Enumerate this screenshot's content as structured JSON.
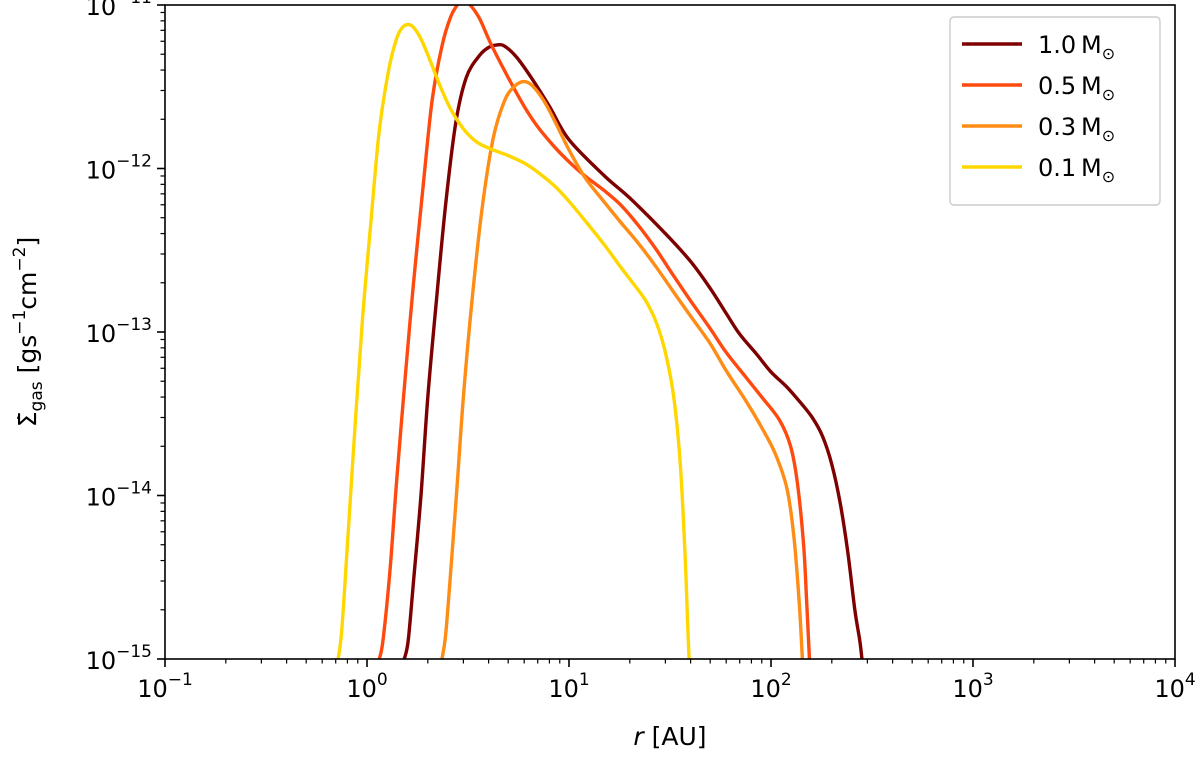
{
  "chart_data": {
    "type": "line",
    "xscale": "log",
    "yscale": "log",
    "xlim": [
      0.1,
      10000
    ],
    "ylim": [
      1e-15,
      1e-11
    ],
    "x_ticks": [
      {
        "value": 0.1,
        "base": "10",
        "exp": "−1"
      },
      {
        "value": 1,
        "base": "10",
        "exp": "0"
      },
      {
        "value": 10,
        "base": "10",
        "exp": "1"
      },
      {
        "value": 100,
        "base": "10",
        "exp": "2"
      },
      {
        "value": 1000,
        "base": "10",
        "exp": "3"
      },
      {
        "value": 10000,
        "base": "10",
        "exp": "4"
      }
    ],
    "y_ticks": [
      {
        "value": 1e-15,
        "base": "10",
        "exp": "−15"
      },
      {
        "value": 1e-14,
        "base": "10",
        "exp": "−14"
      },
      {
        "value": 1e-13,
        "base": "10",
        "exp": "−13"
      },
      {
        "value": 1e-12,
        "base": "10",
        "exp": "−12"
      },
      {
        "value": 1e-11,
        "base": "10",
        "exp": "−11"
      }
    ],
    "xlabel": {
      "var": "r",
      "unit": " [AU]"
    },
    "ylabel": {
      "var": "Σ̇",
      "sub": "gas",
      "unit_open": " [gs",
      "exp1": "−1",
      "unit_mid": "cm",
      "exp2": "−2",
      "unit_close": "]"
    },
    "grid": false,
    "legend_position": "top-right",
    "series": [
      {
        "name": "1.0 M☉",
        "label_value": "1.0",
        "label_unit": "M",
        "color": "#7f0000",
        "points": [
          [
            1.53,
            1e-15
          ],
          [
            1.6,
            1.3e-15
          ],
          [
            1.7,
            3e-15
          ],
          [
            1.85,
            1e-14
          ],
          [
            2.0,
            4e-14
          ],
          [
            2.2,
            1.5e-13
          ],
          [
            2.45,
            6e-13
          ],
          [
            2.75,
            1.9e-12
          ],
          [
            3.1,
            3.6e-12
          ],
          [
            3.6,
            4.9e-12
          ],
          [
            4.0,
            5.5e-12
          ],
          [
            4.4,
            5.7e-12
          ],
          [
            4.8,
            5.6e-12
          ],
          [
            5.5,
            4.8e-12
          ],
          [
            6.5,
            3.6e-12
          ],
          [
            8,
            2.4e-12
          ],
          [
            10,
            1.5e-12
          ],
          [
            15,
            9e-13
          ],
          [
            20,
            6.6e-13
          ],
          [
            30,
            4e-13
          ],
          [
            40,
            2.7e-13
          ],
          [
            50,
            1.85e-13
          ],
          [
            60,
            1.3e-13
          ],
          [
            70,
            9.7e-14
          ],
          [
            85,
            7.3e-14
          ],
          [
            100,
            5.7e-14
          ],
          [
            120,
            4.6e-14
          ],
          [
            140,
            3.7e-14
          ],
          [
            160,
            3e-14
          ],
          [
            180,
            2.3e-14
          ],
          [
            200,
            1.55e-14
          ],
          [
            220,
            9e-15
          ],
          [
            240,
            4.5e-15
          ],
          [
            260,
            2e-15
          ],
          [
            275,
            1.3e-15
          ],
          [
            282,
            1e-15
          ]
        ]
      },
      {
        "name": "0.5 M☉",
        "label_value": "0.5",
        "label_unit": "M",
        "color": "#ff4a0f",
        "points": [
          [
            1.15,
            1e-15
          ],
          [
            1.2,
            1.3e-15
          ],
          [
            1.3,
            3.5e-15
          ],
          [
            1.4,
            1.2e-14
          ],
          [
            1.55,
            5.5e-14
          ],
          [
            1.7,
            2e-13
          ],
          [
            1.9,
            8e-13
          ],
          [
            2.1,
            2.6e-12
          ],
          [
            2.35,
            5.6e-12
          ],
          [
            2.6,
            8.5e-12
          ],
          [
            2.85,
            1.03e-11
          ],
          [
            3.0,
            1.06e-11
          ],
          [
            3.2,
            1.02e-11
          ],
          [
            3.6,
            8.3e-12
          ],
          [
            4.1,
            5.8e-12
          ],
          [
            5,
            3.6e-12
          ],
          [
            6,
            2.4e-12
          ],
          [
            7,
            1.8e-12
          ],
          [
            8.5,
            1.35e-12
          ],
          [
            10,
            1.1e-12
          ],
          [
            12,
            9e-13
          ],
          [
            15,
            7.3e-13
          ],
          [
            18,
            6e-13
          ],
          [
            22,
            4.5e-13
          ],
          [
            27,
            3.2e-13
          ],
          [
            33,
            2.2e-13
          ],
          [
            40,
            1.55e-13
          ],
          [
            50,
            1.05e-13
          ],
          [
            60,
            7.5e-14
          ],
          [
            75,
            5.3e-14
          ],
          [
            90,
            4e-14
          ],
          [
            110,
            2.9e-14
          ],
          [
            125,
            2e-14
          ],
          [
            135,
            1.2e-14
          ],
          [
            145,
            5e-15
          ],
          [
            150,
            2.3e-15
          ],
          [
            155,
            1e-15
          ]
        ]
      },
      {
        "name": "0.3 M☉",
        "label_value": "0.3",
        "label_unit": "M",
        "color": "#ff8c14",
        "points": [
          [
            2.35,
            1e-15
          ],
          [
            2.45,
            1.4e-15
          ],
          [
            2.6,
            3.5e-15
          ],
          [
            2.8,
            1.2e-14
          ],
          [
            3.0,
            4e-14
          ],
          [
            3.3,
            1.5e-13
          ],
          [
            3.7,
            5.5e-13
          ],
          [
            4.2,
            1.5e-12
          ],
          [
            4.8,
            2.6e-12
          ],
          [
            5.4,
            3.2e-12
          ],
          [
            6.0,
            3.4e-12
          ],
          [
            6.6,
            3.2e-12
          ],
          [
            7.5,
            2.6e-12
          ],
          [
            8.5,
            1.95e-12
          ],
          [
            10,
            1.3e-12
          ],
          [
            12,
            8.8e-13
          ],
          [
            15,
            6.2e-13
          ],
          [
            18,
            4.7e-13
          ],
          [
            22,
            3.5e-13
          ],
          [
            27,
            2.5e-13
          ],
          [
            33,
            1.75e-13
          ],
          [
            40,
            1.25e-13
          ],
          [
            50,
            8.5e-14
          ],
          [
            60,
            5.8e-14
          ],
          [
            75,
            3.8e-14
          ],
          [
            90,
            2.6e-14
          ],
          [
            105,
            1.8e-14
          ],
          [
            120,
            1.1e-14
          ],
          [
            130,
            5.5e-15
          ],
          [
            138,
            2.2e-15
          ],
          [
            143,
            1e-15
          ]
        ]
      },
      {
        "name": "0.1 M☉",
        "label_value": "0.1",
        "label_unit": "M",
        "color": "#ffd700",
        "points": [
          [
            0.72,
            1e-15
          ],
          [
            0.75,
            1.5e-15
          ],
          [
            0.8,
            5e-15
          ],
          [
            0.87,
            2.5e-14
          ],
          [
            0.95,
            1.2e-13
          ],
          [
            1.05,
            5e-13
          ],
          [
            1.15,
            1.7e-12
          ],
          [
            1.28,
            4e-12
          ],
          [
            1.4,
            6.2e-12
          ],
          [
            1.5,
            7.3e-12
          ],
          [
            1.6,
            7.6e-12
          ],
          [
            1.7,
            7.3e-12
          ],
          [
            1.85,
            6.2e-12
          ],
          [
            2.05,
            4.6e-12
          ],
          [
            2.3,
            3.2e-12
          ],
          [
            2.6,
            2.3e-12
          ],
          [
            3,
            1.75e-12
          ],
          [
            3.5,
            1.45e-12
          ],
          [
            4.2,
            1.3e-12
          ],
          [
            5,
            1.2e-12
          ],
          [
            6,
            1.08e-12
          ],
          [
            7,
            9.5e-13
          ],
          [
            8.5,
            7.8e-13
          ],
          [
            10,
            6.3e-13
          ],
          [
            12,
            4.8e-13
          ],
          [
            15,
            3.4e-13
          ],
          [
            18,
            2.5e-13
          ],
          [
            21,
            1.95e-13
          ],
          [
            24,
            1.55e-13
          ],
          [
            27,
            1.15e-13
          ],
          [
            30,
            7.5e-14
          ],
          [
            33,
            4e-14
          ],
          [
            35.5,
            1.6e-14
          ],
          [
            37.5,
            4.5e-15
          ],
          [
            38.7,
            1.6e-15
          ],
          [
            39.3,
            1e-15
          ]
        ]
      }
    ]
  }
}
